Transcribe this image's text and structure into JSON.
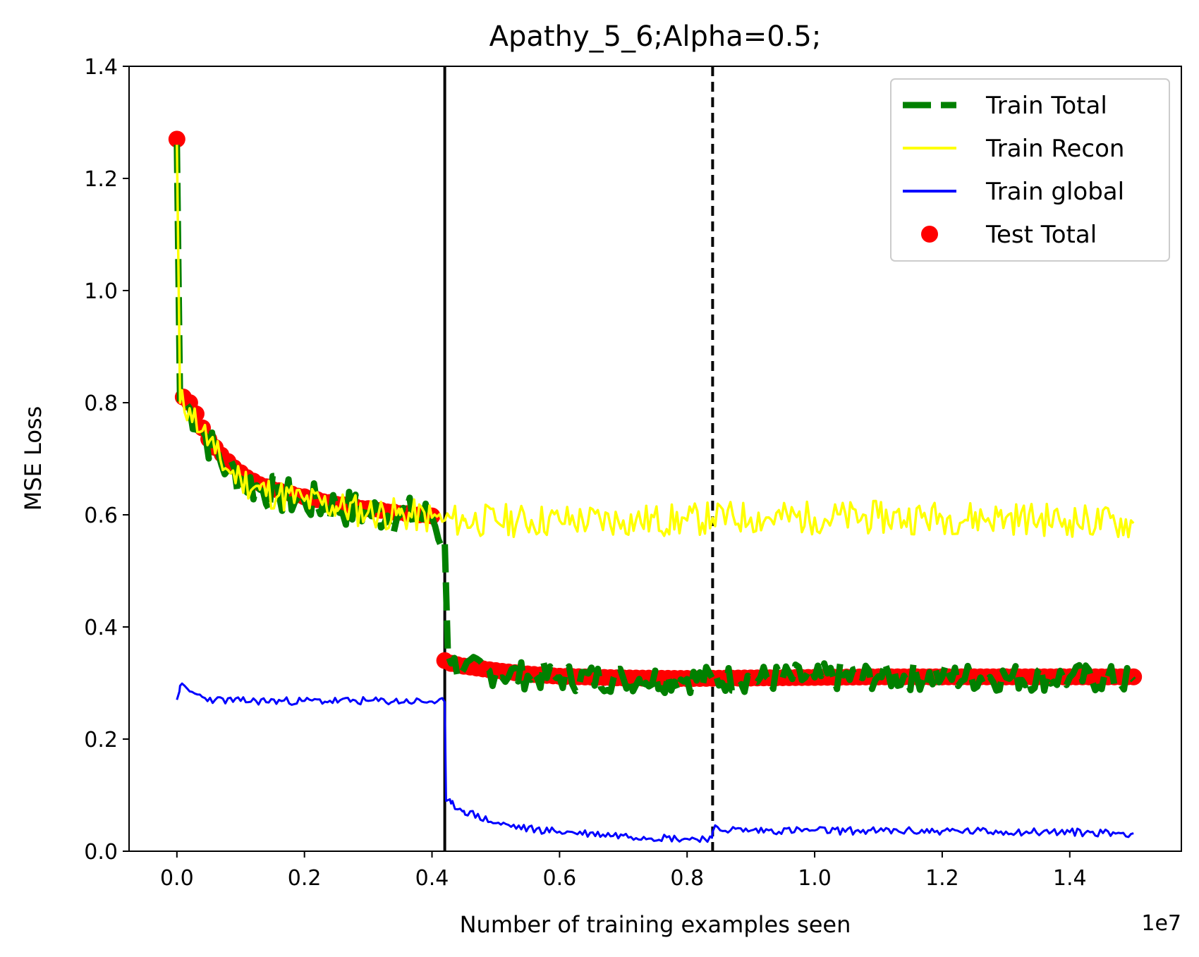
{
  "chart_data": {
    "type": "line",
    "title": "Apathy_5_6;Alpha=0.5;",
    "xlabel": "Number of training examples seen",
    "ylabel": "MSE Loss",
    "x_offset_label": "1e7",
    "xlim": [
      -0.075,
      1.575
    ],
    "ylim": [
      0.0,
      1.4
    ],
    "x_ticks": [
      "0.0",
      "0.2",
      "0.4",
      "0.6",
      "0.8",
      "1.0",
      "1.2",
      "1.4"
    ],
    "y_ticks": [
      "0.0",
      "0.2",
      "0.4",
      "0.6",
      "0.8",
      "1.0",
      "1.2",
      "1.4"
    ],
    "grid": false,
    "legend_position": "top-right",
    "vlines": [
      {
        "x": 0.42,
        "style": "solid",
        "color": "#000000"
      },
      {
        "x": 0.84,
        "style": "dashed",
        "color": "#000000"
      }
    ],
    "series": [
      {
        "name": "Train Total",
        "color": "#008000",
        "style": "dashed",
        "x": [
          0.0,
          0.005,
          0.02,
          0.04,
          0.06,
          0.08,
          0.1,
          0.13,
          0.16,
          0.2,
          0.25,
          0.3,
          0.35,
          0.4,
          0.42,
          0.425,
          0.43,
          0.45,
          0.5,
          0.55,
          0.6,
          0.7,
          0.8,
          0.84,
          0.9,
          1.0,
          1.1,
          1.2,
          1.3,
          1.4,
          1.5
        ],
        "y": [
          1.26,
          0.8,
          0.79,
          0.75,
          0.71,
          0.68,
          0.665,
          0.645,
          0.635,
          0.625,
          0.615,
          0.605,
          0.6,
          0.595,
          0.55,
          0.35,
          0.335,
          0.325,
          0.318,
          0.313,
          0.31,
          0.308,
          0.307,
          0.307,
          0.308,
          0.31,
          0.312,
          0.311,
          0.31,
          0.31,
          0.305
        ]
      },
      {
        "name": "Train Recon",
        "color": "#ffff00",
        "style": "solid",
        "x": [
          0.0,
          0.005,
          0.02,
          0.04,
          0.06,
          0.08,
          0.1,
          0.13,
          0.16,
          0.2,
          0.25,
          0.3,
          0.35,
          0.4,
          0.42,
          0.45,
          0.5,
          0.6,
          0.7,
          0.8,
          0.84,
          0.9,
          1.0,
          1.1,
          1.2,
          1.3,
          1.4,
          1.5
        ],
        "y": [
          1.26,
          0.8,
          0.79,
          0.75,
          0.71,
          0.68,
          0.665,
          0.645,
          0.635,
          0.625,
          0.615,
          0.605,
          0.6,
          0.595,
          0.59,
          0.59,
          0.59,
          0.59,
          0.59,
          0.59,
          0.595,
          0.595,
          0.595,
          0.595,
          0.595,
          0.595,
          0.59,
          0.585
        ]
      },
      {
        "name": "Train global",
        "color": "#0000ff",
        "style": "solid",
        "x": [
          0.0,
          0.005,
          0.02,
          0.04,
          0.06,
          0.1,
          0.2,
          0.3,
          0.4,
          0.42,
          0.422,
          0.43,
          0.45,
          0.5,
          0.55,
          0.6,
          0.7,
          0.8,
          0.839,
          0.842,
          0.9,
          1.0,
          1.1,
          1.2,
          1.3,
          1.4,
          1.5
        ],
        "y": [
          0.27,
          0.295,
          0.285,
          0.275,
          0.27,
          0.268,
          0.268,
          0.268,
          0.267,
          0.266,
          0.09,
          0.085,
          0.072,
          0.05,
          0.04,
          0.035,
          0.028,
          0.022,
          0.024,
          0.04,
          0.037,
          0.037,
          0.036,
          0.036,
          0.035,
          0.034,
          0.032
        ]
      },
      {
        "name": "Test Total",
        "color": "#ff0000",
        "style": "markers",
        "x": [
          0.0,
          0.01,
          0.02,
          0.03,
          0.04,
          0.05,
          0.06,
          0.08,
          0.1,
          0.12,
          0.14,
          0.16,
          0.18,
          0.2,
          0.22,
          0.24,
          0.26,
          0.28,
          0.3,
          0.32,
          0.34,
          0.36,
          0.38,
          0.4,
          0.42,
          0.43,
          0.45,
          0.5,
          0.55,
          0.6,
          0.7,
          0.8,
          0.9,
          1.0,
          1.1,
          1.2,
          1.3,
          1.4,
          1.5
        ],
        "y": [
          1.27,
          0.81,
          0.8,
          0.78,
          0.755,
          0.735,
          0.72,
          0.695,
          0.675,
          0.66,
          0.65,
          0.643,
          0.637,
          0.632,
          0.627,
          0.622,
          0.618,
          0.614,
          0.611,
          0.608,
          0.605,
          0.602,
          0.6,
          0.598,
          0.34,
          0.335,
          0.33,
          0.322,
          0.316,
          0.312,
          0.309,
          0.308,
          0.309,
          0.31,
          0.311,
          0.311,
          0.311,
          0.311,
          0.311
        ]
      }
    ]
  }
}
